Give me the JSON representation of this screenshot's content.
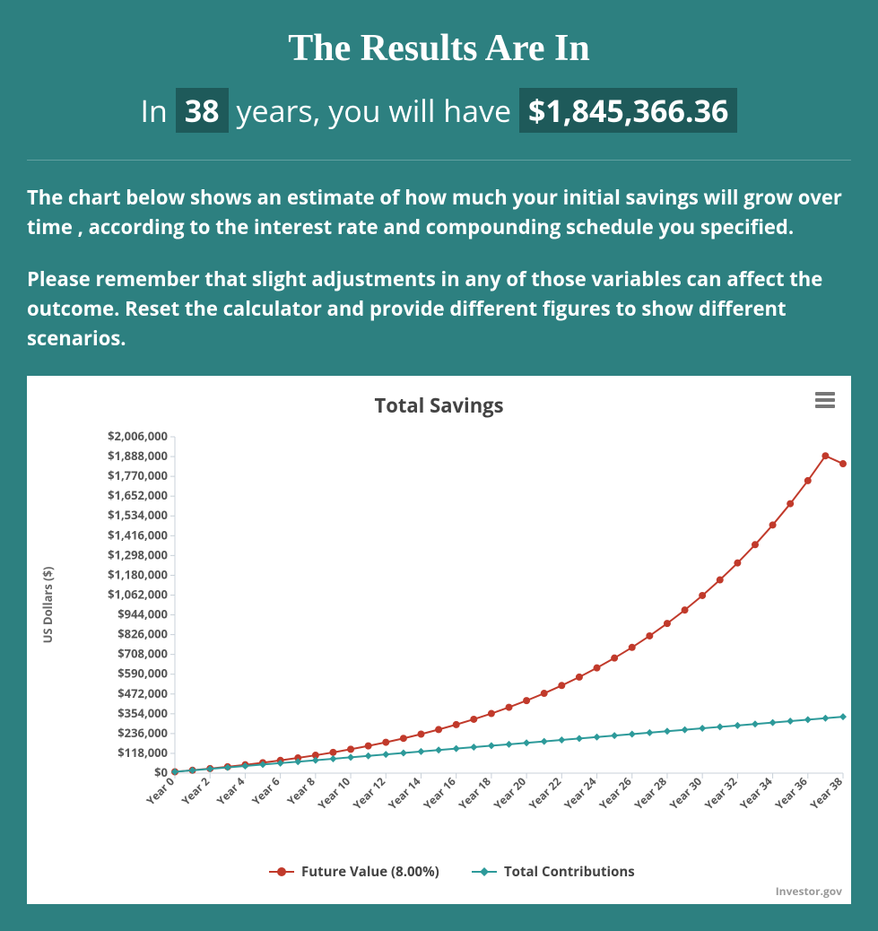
{
  "header": {
    "title": "The Results Are In",
    "subtitle_prefix": "In",
    "years_value": "38",
    "subtitle_mid": "years, you will have",
    "amount_value": "$1,845,366.36"
  },
  "description": {
    "para1": "The chart below shows an estimate of how much your initial savings will grow over time , according to the interest rate and compounding schedule you specified.",
    "para2": "Please remember that slight adjustments in any of those variables can affect the outcome. Reset the calculator and provide different figures to show different scenarios."
  },
  "chart": {
    "title": "Total Savings",
    "type": "line",
    "ylabel": "US Dollars ($)",
    "ylabel_fontsize": 13,
    "ylabel_color": "#666666",
    "ylim": [
      0,
      2006000
    ],
    "y_ticks": [
      0,
      118000,
      236000,
      354000,
      472000,
      590000,
      708000,
      826000,
      944000,
      1062000,
      1180000,
      1298000,
      1416000,
      1534000,
      1652000,
      1770000,
      1888000,
      2006000
    ],
    "y_tick_labels": [
      "$0",
      "$118,000",
      "$236,000",
      "$354,000",
      "$472,000",
      "$590,000",
      "$708,000",
      "$826,000",
      "$944,000",
      "$1,062,000",
      "$1,180,000",
      "$1,298,000",
      "$1,416,000",
      "$1,534,000",
      "$1,652,000",
      "$1,770,000",
      "$1,888,000",
      "$2,006,000"
    ],
    "y_tick_fontsize": 13,
    "x_range": [
      0,
      38
    ],
    "x_tick_step": 2,
    "x_tick_labels": [
      "Year 0",
      "Year 2",
      "Year 4",
      "Year 6",
      "Year 8",
      "Year 10",
      "Year 12",
      "Year 14",
      "Year 16",
      "Year 18",
      "Year 20",
      "Year 22",
      "Year 24",
      "Year 26",
      "Year 28",
      "Year 30",
      "Year 32",
      "Year 34",
      "Year 36",
      "Year 38"
    ],
    "x_tick_fontsize": 12,
    "plot_background": "#ffffff",
    "grid_color": "#e6e6e6",
    "axis_color": "#c8d0d8",
    "series": [
      {
        "name": "Future Value (8.00%)",
        "color": "#c13a2b",
        "line_width": 2,
        "marker": "circle",
        "marker_size": 4,
        "x": [
          0,
          1,
          2,
          3,
          4,
          5,
          6,
          7,
          8,
          9,
          10,
          11,
          12,
          13,
          14,
          15,
          16,
          17,
          18,
          19,
          20,
          21,
          22,
          23,
          24,
          25,
          26,
          27,
          28,
          29,
          30,
          31,
          32,
          33,
          34,
          35,
          36,
          37,
          38
        ],
        "y": [
          8000,
          17280,
          27302,
          38127,
          49817,
          62442,
          76077,
          90804,
          106708,
          123884,
          142435,
          162470,
          184107,
          207476,
          232714,
          259971,
          289408,
          321201,
          355537,
          392620,
          432670,
          475923,
          522637,
          573088,
          627575,
          686421,
          749975,
          818613,
          892742,
          972802,
          1059266,
          1152647,
          1253499,
          1362419,
          1480053,
          1607097,
          1744305,
          1892489,
          1845366
        ]
      },
      {
        "name": "Total Contributions",
        "color": "#2d9a9a",
        "line_width": 2,
        "marker": "diamond",
        "marker_size": 4,
        "x": [
          0,
          1,
          2,
          3,
          4,
          5,
          6,
          7,
          8,
          9,
          10,
          11,
          12,
          13,
          14,
          15,
          16,
          17,
          18,
          19,
          20,
          21,
          22,
          23,
          24,
          25,
          26,
          27,
          28,
          29,
          30,
          31,
          32,
          33,
          34,
          35,
          36,
          37,
          38
        ],
        "y": [
          8000,
          16640,
          25280,
          33920,
          42560,
          51200,
          59840,
          68480,
          77120,
          85760,
          94400,
          103040,
          111680,
          120320,
          128960,
          137600,
          146240,
          154880,
          163520,
          172160,
          180800,
          189440,
          198080,
          206720,
          215360,
          224000,
          232640,
          241280,
          249920,
          258560,
          267200,
          275840,
          284480,
          293120,
          301760,
          310400,
          319040,
          327680,
          336320
        ]
      }
    ],
    "legend": {
      "items": [
        "Future Value (8.00%)",
        "Total Contributions"
      ],
      "colors": [
        "#c13a2b",
        "#2d9a9a"
      ],
      "markers": [
        "circle",
        "diamond"
      ],
      "position": "bottom-center",
      "fontsize": 15,
      "fontweight": 700,
      "text_color": "#434343"
    },
    "brand": "Investor.gov"
  }
}
